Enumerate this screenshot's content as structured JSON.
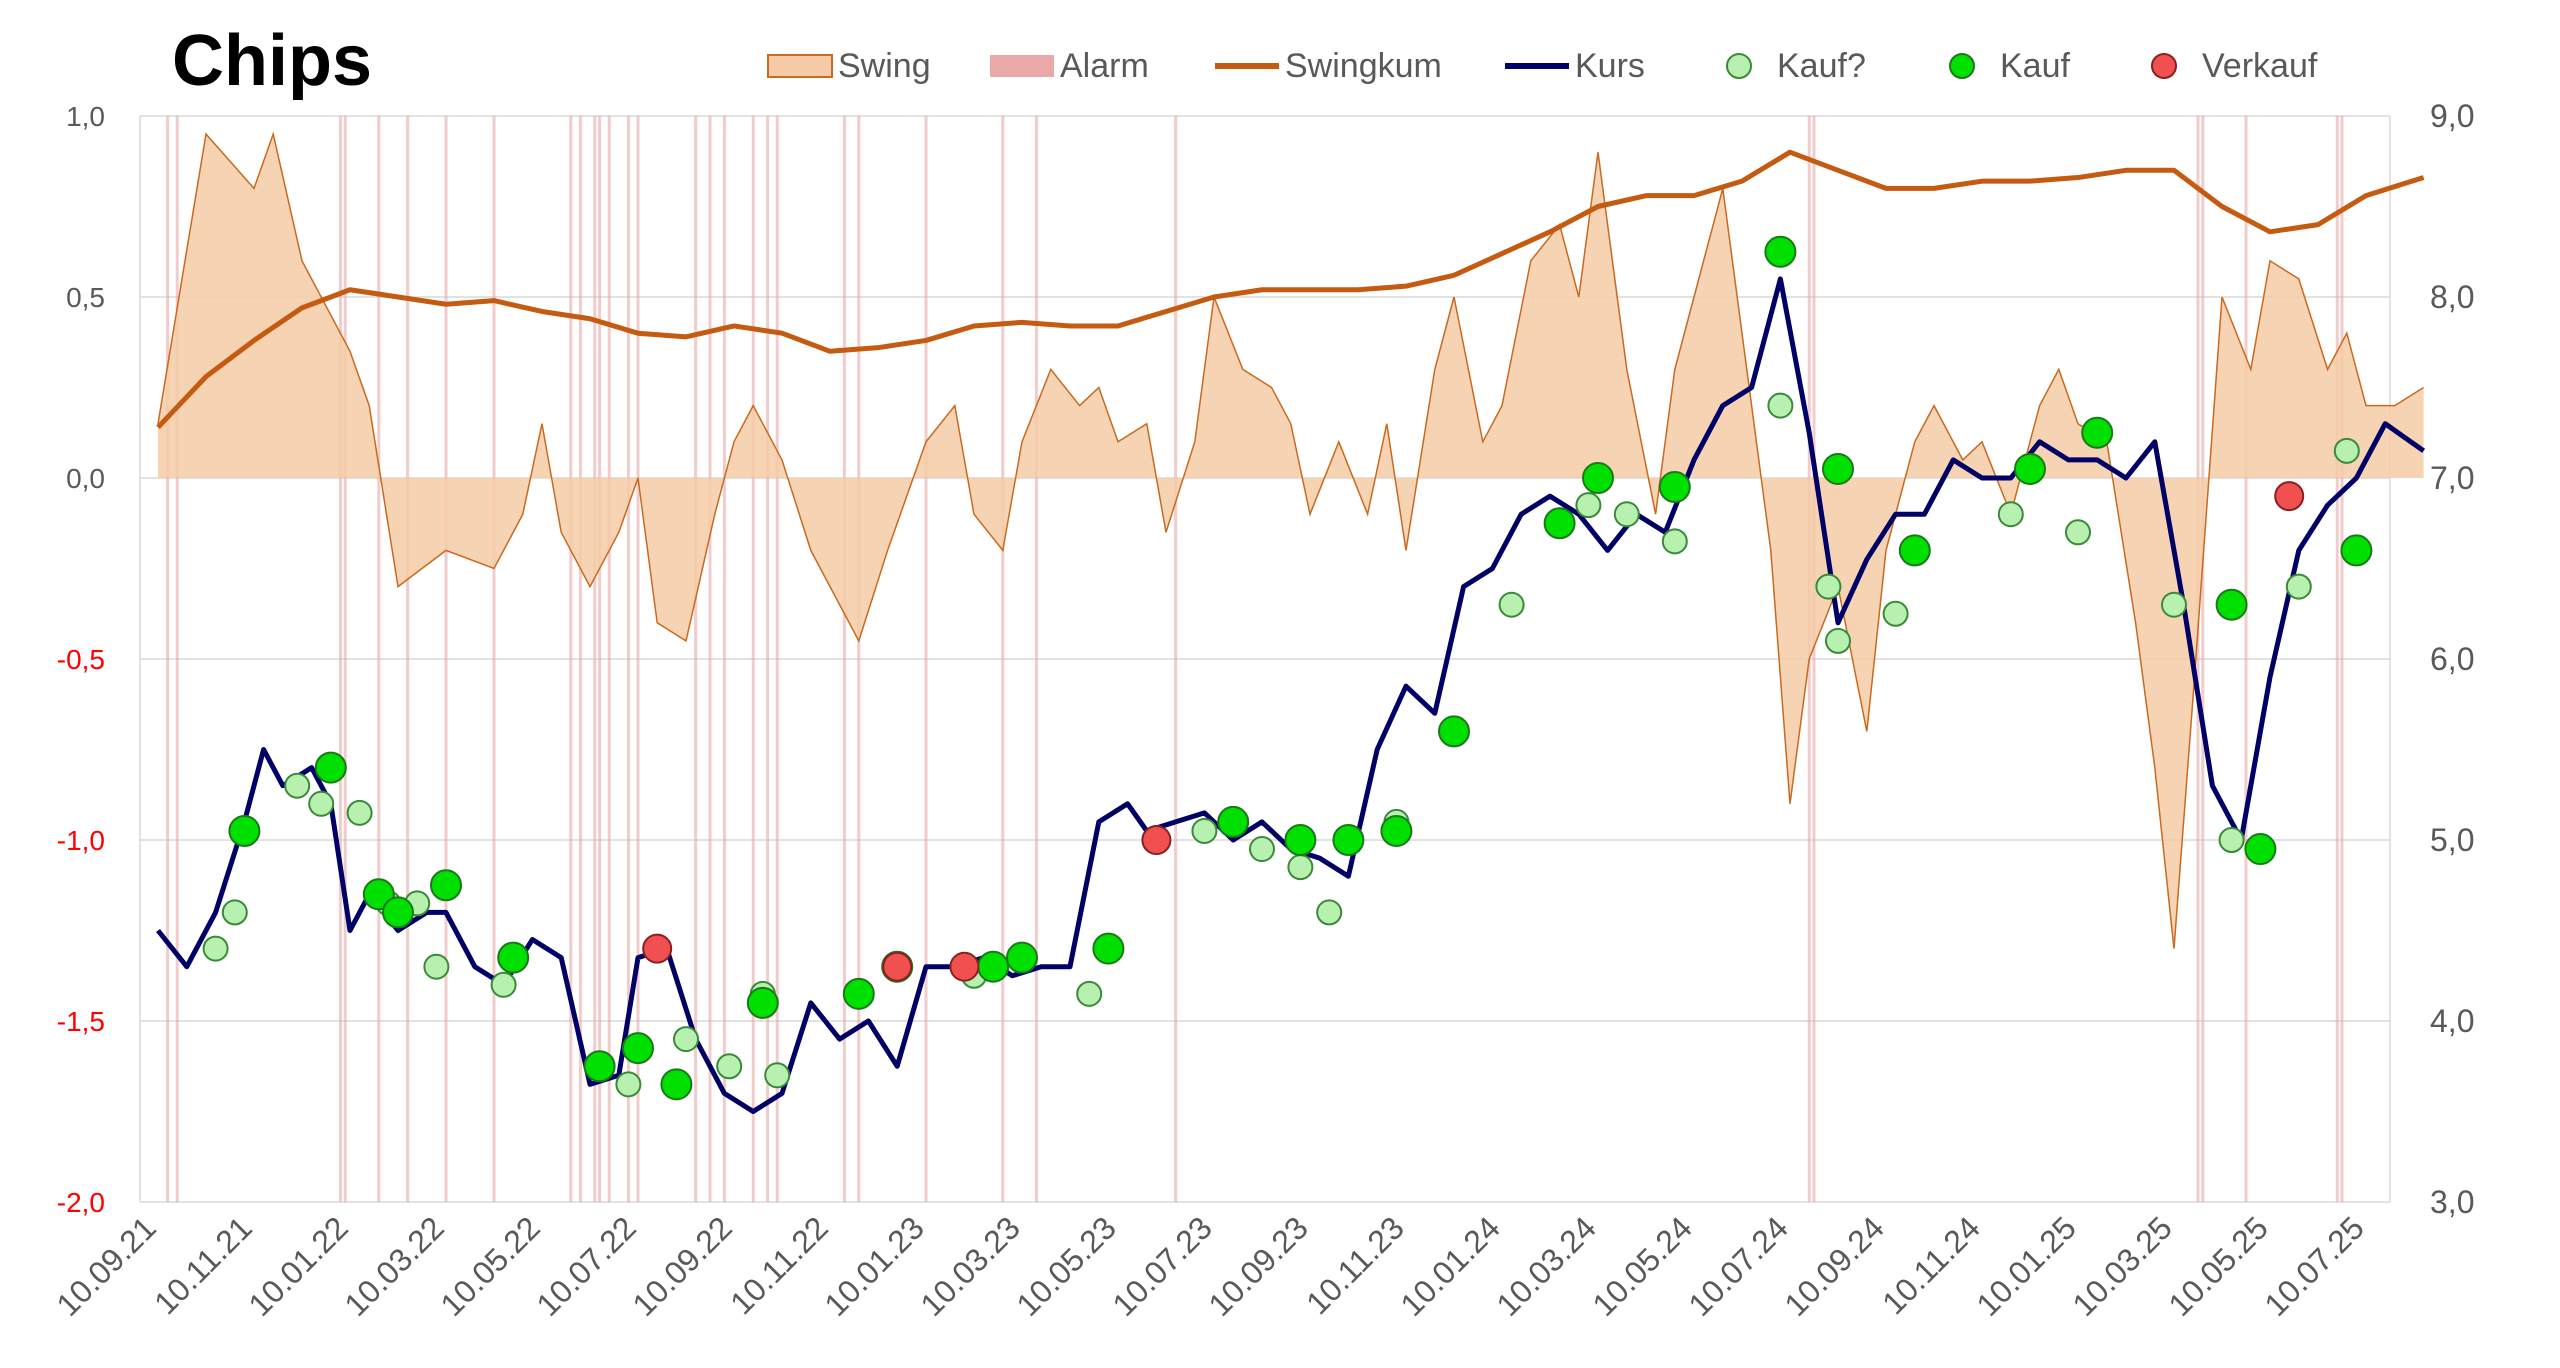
{
  "chart_data": {
    "type": "line",
    "title": "Chips",
    "legend_position": "top",
    "grid": true,
    "x_tick_labels": [
      "10.09.21",
      "10.11.21",
      "10.01.22",
      "10.03.22",
      "10.05.22",
      "10.07.22",
      "10.09.22",
      "10.11.22",
      "10.01.23",
      "10.03.23",
      "10.05.23",
      "10.07.23",
      "10.09.23",
      "10.11.23",
      "10.01.24",
      "10.03.24",
      "10.05.24",
      "10.07.24",
      "10.09.24",
      "10.11.24",
      "10.01.25",
      "10.03.25",
      "10.05.25",
      "10.07.25"
    ],
    "y_left": {
      "ylim": [
        -2.0,
        1.0
      ],
      "ticks": [
        1.0,
        0.5,
        0.0,
        -0.5,
        -1.0,
        -1.5,
        -2.0
      ],
      "tick_labels": [
        "1,0",
        "0,5",
        "0,0",
        "-0,5",
        "-1,0",
        "-1,5",
        "-2,0"
      ],
      "negative_color": "#ff0000"
    },
    "y_right": {
      "ylim": [
        3.0,
        9.0
      ],
      "ticks": [
        9.0,
        8.0,
        7.0,
        6.0,
        5.0,
        4.0,
        3.0
      ],
      "tick_labels": [
        "9,0",
        "8,0",
        "7,0",
        "6,0",
        "5,0",
        "4,0",
        "3,0"
      ]
    },
    "legend": [
      {
        "key": "swing",
        "label": "Swing",
        "kind": "area",
        "color": "#f4cba6",
        "edge": "#c96a1f"
      },
      {
        "key": "alarm",
        "label": "Alarm",
        "kind": "rect",
        "color": "#eaa8a8"
      },
      {
        "key": "swingkum",
        "label": "Swingkum",
        "kind": "line",
        "color": "#c55a11"
      },
      {
        "key": "kurs",
        "label": "Kurs",
        "kind": "line",
        "color": "#000066"
      },
      {
        "key": "kauf_q",
        "label": "Kauf?",
        "kind": "marker",
        "color": "#b8f0b0"
      },
      {
        "key": "kauf",
        "label": "Kauf",
        "kind": "marker",
        "color": "#00e000"
      },
      {
        "key": "verkauf",
        "label": "Verkauf",
        "kind": "marker",
        "color": "#f05050"
      }
    ],
    "series": [
      {
        "name": "Swing",
        "axis": "left",
        "x": [
          0,
          0.5,
          1,
          1.2,
          1.5,
          2,
          2.2,
          2.5,
          3,
          3.5,
          3.8,
          4,
          4.2,
          4.5,
          4.8,
          5,
          5.2,
          5.5,
          5.8,
          6,
          6.2,
          6.5,
          6.8,
          7,
          7.3,
          7.6,
          8,
          8.3,
          8.5,
          8.8,
          9,
          9.3,
          9.6,
          9.8,
          10,
          10.3,
          10.5,
          10.8,
          11,
          11.3,
          11.6,
          11.8,
          12,
          12.3,
          12.6,
          12.8,
          13,
          13.3,
          13.5,
          13.8,
          14,
          14.3,
          14.6,
          14.8,
          15,
          15.3,
          15.6,
          15.8,
          16,
          16.3,
          16.6,
          16.8,
          17,
          17.2,
          17.5,
          17.8,
          18,
          18.3,
          18.5,
          18.8,
          19,
          19.3,
          19.6,
          19.8,
          20,
          20.3,
          20.6,
          20.8,
          21,
          21.2,
          21.5,
          21.8,
          22,
          22.3,
          22.6,
          22.8,
          23,
          23.3,
          23.6
        ],
        "y": [
          0.15,
          0.95,
          0.8,
          0.95,
          0.6,
          0.35,
          0.2,
          -0.3,
          -0.2,
          -0.25,
          -0.1,
          0.15,
          -0.15,
          -0.3,
          -0.15,
          0,
          -0.4,
          -0.45,
          -0.1,
          0.1,
          0.2,
          0.05,
          -0.2,
          -0.3,
          -0.45,
          -0.2,
          0.1,
          0.2,
          -0.1,
          -0.2,
          0.1,
          0.3,
          0.2,
          0.25,
          0.1,
          0.15,
          -0.15,
          0.1,
          0.5,
          0.3,
          0.25,
          0.15,
          -0.1,
          0.1,
          -0.1,
          0.15,
          -0.2,
          0.3,
          0.5,
          0.1,
          0.2,
          0.6,
          0.7,
          0.5,
          0.9,
          0.3,
          -0.1,
          0.3,
          0.5,
          0.8,
          0.2,
          -0.2,
          -0.9,
          -0.5,
          -0.3,
          -0.7,
          -0.2,
          0.1,
          0.2,
          0.05,
          0.1,
          -0.1,
          0.2,
          0.3,
          0.15,
          0.1,
          -0.4,
          -0.8,
          -1.3,
          -0.6,
          0.5,
          0.3,
          0.6,
          0.55,
          0.3,
          0.4,
          0.2,
          0.2,
          0.25
        ]
      },
      {
        "name": "Swingkum",
        "axis": "left",
        "x": [
          0,
          0.5,
          1,
          1.5,
          2,
          2.5,
          3,
          3.5,
          4,
          4.5,
          5,
          5.5,
          6,
          6.5,
          7,
          7.5,
          8,
          8.5,
          9,
          9.5,
          10,
          10.5,
          11,
          11.5,
          12,
          12.5,
          13,
          13.5,
          14,
          14.5,
          15,
          15.5,
          16,
          16.5,
          17,
          17.5,
          18,
          18.5,
          19,
          19.5,
          20,
          20.5,
          21,
          21.5,
          22,
          22.5,
          23,
          23.6
        ],
        "y": [
          0.14,
          0.28,
          0.38,
          0.47,
          0.52,
          0.5,
          0.48,
          0.49,
          0.46,
          0.44,
          0.4,
          0.39,
          0.42,
          0.4,
          0.35,
          0.36,
          0.38,
          0.42,
          0.43,
          0.42,
          0.42,
          0.46,
          0.5,
          0.52,
          0.52,
          0.52,
          0.53,
          0.56,
          0.62,
          0.68,
          0.75,
          0.78,
          0.78,
          0.82,
          0.9,
          0.85,
          0.8,
          0.8,
          0.82,
          0.82,
          0.83,
          0.85,
          0.85,
          0.75,
          0.68,
          0.7,
          0.78,
          0.83
        ]
      },
      {
        "name": "Kurs",
        "axis": "right",
        "x": [
          0,
          0.3,
          0.6,
          0.9,
          1.1,
          1.3,
          1.6,
          1.8,
          2,
          2.2,
          2.5,
          2.8,
          3,
          3.3,
          3.6,
          3.9,
          4.2,
          4.5,
          4.8,
          5,
          5.3,
          5.6,
          5.9,
          6.2,
          6.5,
          6.8,
          7.1,
          7.4,
          7.7,
          8,
          8.3,
          8.6,
          8.9,
          9.2,
          9.5,
          9.8,
          10.1,
          10.3,
          10.6,
          10.9,
          11.2,
          11.5,
          11.8,
          12.1,
          12.4,
          12.7,
          13,
          13.3,
          13.6,
          13.9,
          14.2,
          14.5,
          14.8,
          15.1,
          15.4,
          15.7,
          16,
          16.3,
          16.6,
          16.9,
          17.2,
          17.5,
          17.8,
          18.1,
          18.4,
          18.7,
          19,
          19.3,
          19.6,
          19.9,
          20.2,
          20.5,
          20.8,
          21.1,
          21.4,
          21.7,
          22,
          22.3,
          22.6,
          22.9,
          23.2,
          23.6
        ],
        "y": [
          4.5,
          4.3,
          4.6,
          5.1,
          5.5,
          5.3,
          5.4,
          5.2,
          4.5,
          4.7,
          4.5,
          4.6,
          4.6,
          4.3,
          4.2,
          4.45,
          4.35,
          3.65,
          3.7,
          4.35,
          4.4,
          3.9,
          3.6,
          3.5,
          3.6,
          4.1,
          3.9,
          4.0,
          3.75,
          4.3,
          4.3,
          4.35,
          4.25,
          4.3,
          4.3,
          5.1,
          5.2,
          5.05,
          5.1,
          5.15,
          5.0,
          5.1,
          4.95,
          4.9,
          4.8,
          5.5,
          5.85,
          5.7,
          6.4,
          6.5,
          6.8,
          6.9,
          6.8,
          6.6,
          6.8,
          6.7,
          7.1,
          7.4,
          7.5,
          8.1,
          7.25,
          6.2,
          6.55,
          6.8,
          6.8,
          7.1,
          7.0,
          7.0,
          7.2,
          7.1,
          7.1,
          7.0,
          7.2,
          6.3,
          5.3,
          5.0,
          5.9,
          6.6,
          6.85,
          7.0,
          7.3,
          7.15
        ]
      }
    ],
    "alarm_x": [
      0.1,
      0.2,
      1.9,
      1.95,
      2.3,
      2.6,
      3.0,
      3.5,
      4.3,
      4.4,
      4.55,
      4.6,
      4.7,
      4.9,
      5.0,
      5.6,
      5.75,
      5.9,
      6.2,
      6.35,
      6.45,
      7.15,
      7.3,
      8.0,
      8.8,
      9.15,
      10.6,
      17.2,
      17.25,
      21.25,
      21.3,
      21.75,
      22.7,
      22.75
    ]
  },
  "markers": {
    "kauf_q": [
      [
        0.6,
        4.4
      ],
      [
        0.8,
        4.6
      ],
      [
        1.45,
        5.3
      ],
      [
        1.7,
        5.2
      ],
      [
        2.1,
        5.15
      ],
      [
        2.4,
        4.65
      ],
      [
        2.7,
        4.65
      ],
      [
        2.9,
        4.3
      ],
      [
        3.6,
        4.2
      ],
      [
        4.9,
        3.65
      ],
      [
        5.5,
        3.9
      ],
      [
        5.95,
        3.75
      ],
      [
        6.3,
        4.15
      ],
      [
        6.45,
        3.7
      ],
      [
        8.5,
        4.25
      ],
      [
        9.7,
        4.15
      ],
      [
        10.9,
        5.05
      ],
      [
        11.5,
        4.95
      ],
      [
        11.9,
        4.85
      ],
      [
        12.2,
        4.6
      ],
      [
        12.9,
        5.1
      ],
      [
        14.1,
        6.3
      ],
      [
        14.9,
        6.85
      ],
      [
        15.3,
        6.8
      ],
      [
        15.8,
        6.65
      ],
      [
        16.9,
        7.4
      ],
      [
        17.4,
        6.4
      ],
      [
        17.5,
        6.1
      ],
      [
        18.1,
        6.25
      ],
      [
        19.3,
        6.8
      ],
      [
        20.0,
        6.7
      ],
      [
        21.0,
        6.3
      ],
      [
        21.6,
        5.0
      ],
      [
        22.3,
        6.4
      ],
      [
        22.8,
        7.15
      ]
    ],
    "kauf": [
      [
        0.9,
        5.05
      ],
      [
        1.8,
        5.4
      ],
      [
        2.3,
        4.7
      ],
      [
        2.5,
        4.6
      ],
      [
        3.0,
        4.75
      ],
      [
        3.7,
        4.35
      ],
      [
        4.6,
        3.75
      ],
      [
        5.0,
        3.85
      ],
      [
        5.4,
        3.65
      ],
      [
        6.3,
        4.1
      ],
      [
        7.3,
        4.15
      ],
      [
        7.7,
        4.3
      ],
      [
        8.7,
        4.3
      ],
      [
        9.0,
        4.35
      ],
      [
        9.9,
        4.4
      ],
      [
        11.2,
        5.1
      ],
      [
        11.9,
        5.0
      ],
      [
        12.4,
        5.0
      ],
      [
        12.9,
        5.05
      ],
      [
        13.5,
        5.6
      ],
      [
        14.6,
        6.75
      ],
      [
        15.0,
        7.0
      ],
      [
        15.8,
        6.95
      ],
      [
        16.9,
        8.25
      ],
      [
        17.5,
        7.05
      ],
      [
        18.3,
        6.6
      ],
      [
        19.5,
        7.05
      ],
      [
        20.2,
        7.25
      ],
      [
        21.6,
        6.3
      ],
      [
        21.9,
        4.95
      ],
      [
        22.9,
        6.6
      ]
    ],
    "verkauf": [
      [
        5.2,
        4.4
      ],
      [
        7.7,
        4.3
      ],
      [
        8.4,
        4.3
      ],
      [
        10.4,
        5.0
      ],
      [
        22.2,
        6.9
      ]
    ]
  }
}
